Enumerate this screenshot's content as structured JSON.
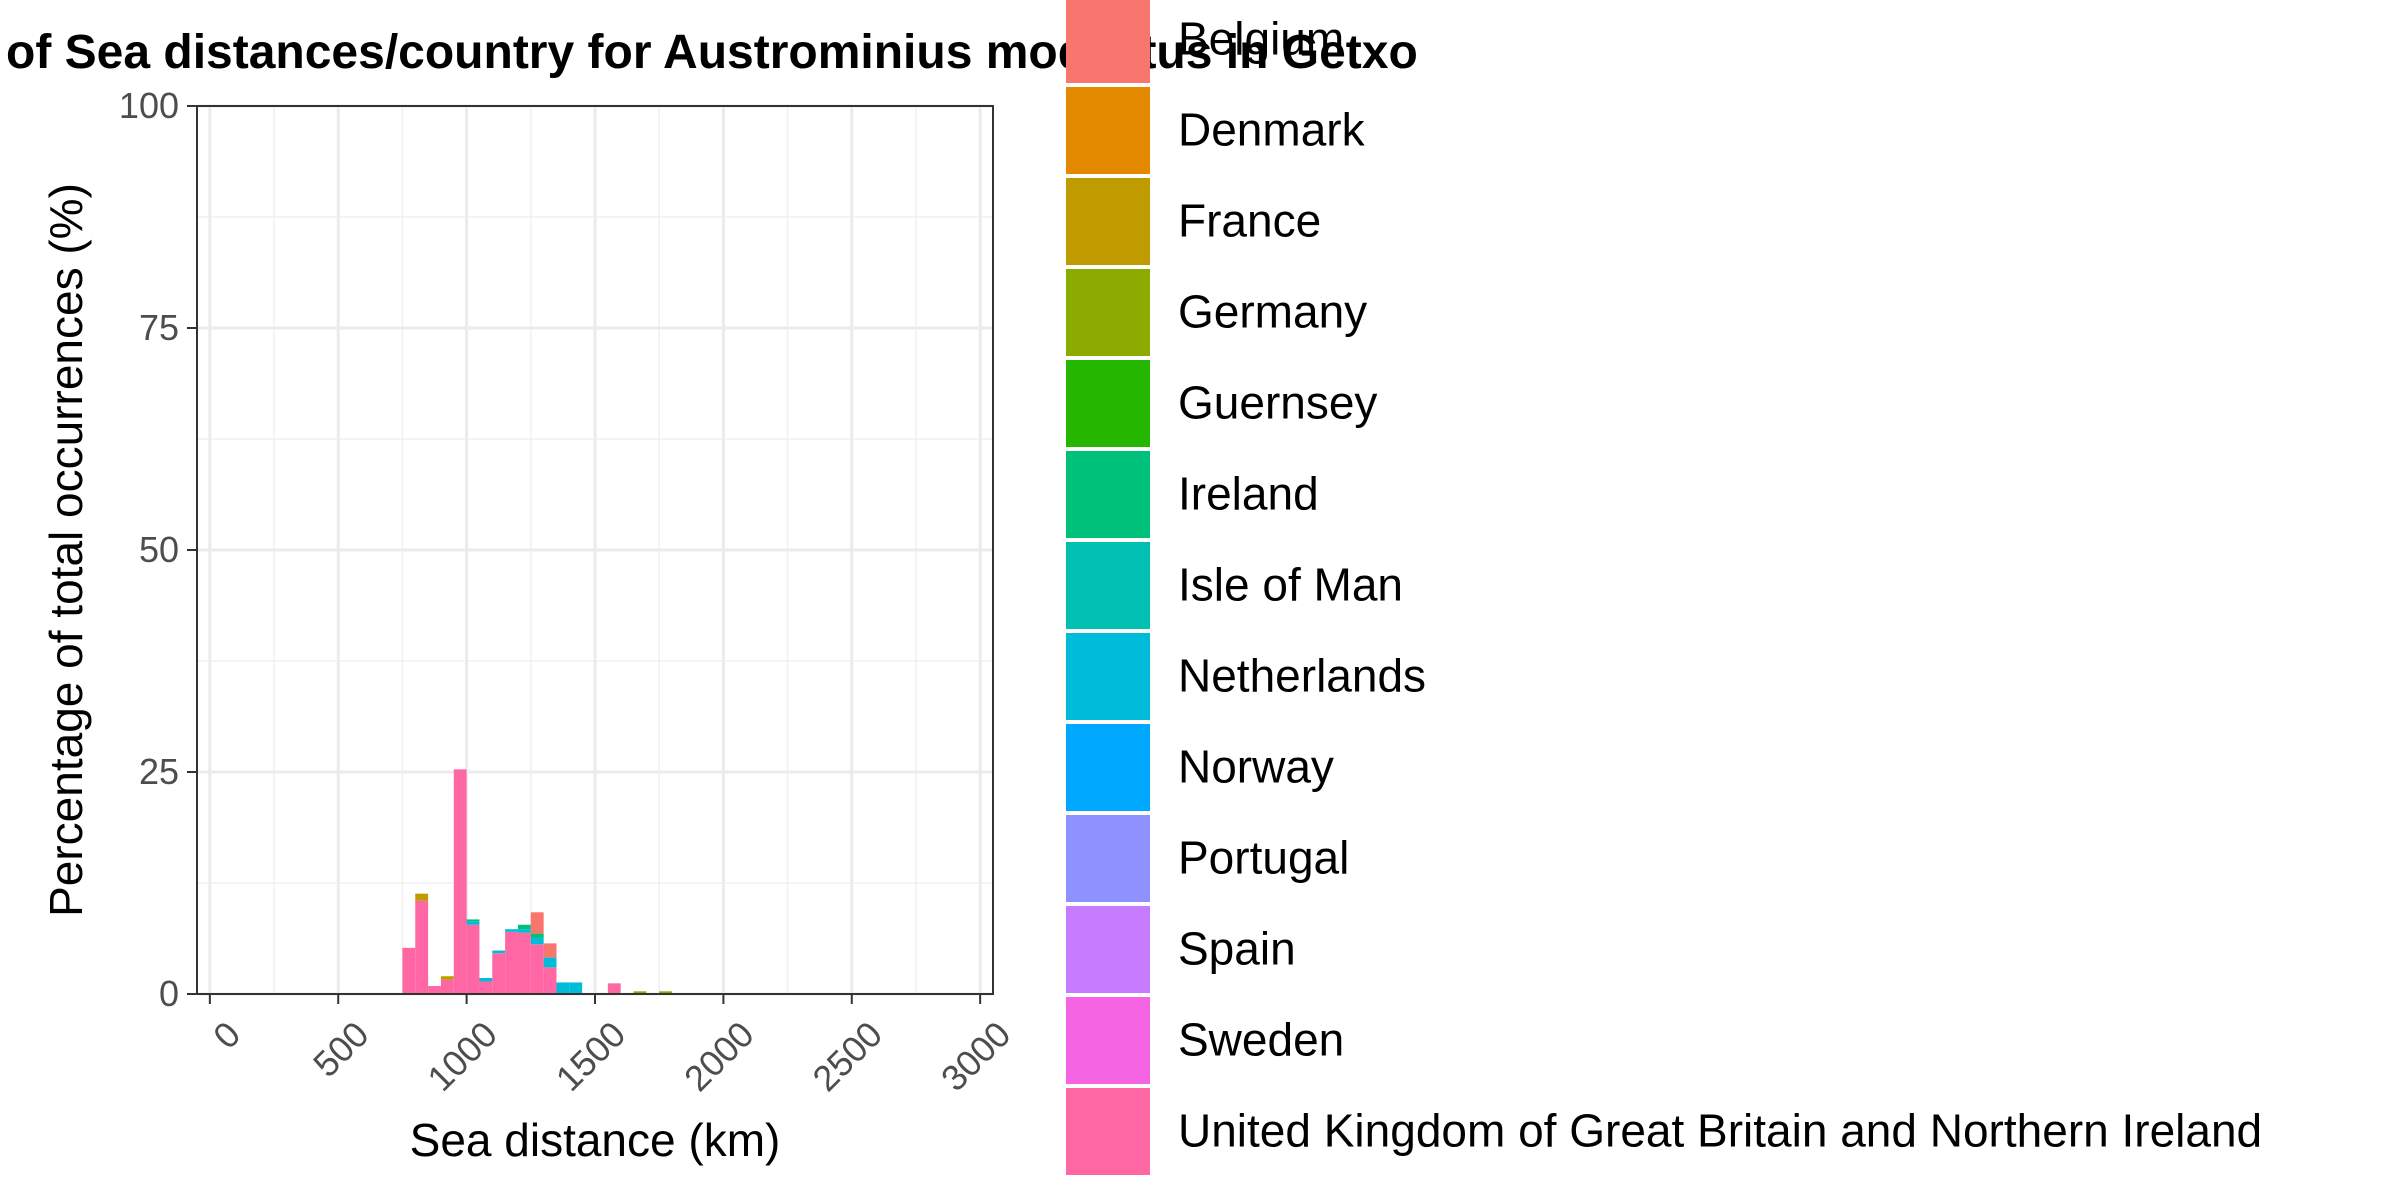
{
  "chart_data": {
    "type": "bar",
    "stacked": true,
    "title": "of Sea distances/country for Austrominius modestus in Getxo",
    "xlabel": "Sea distance (km)",
    "ylabel": "Percentage of total occurrences (%)",
    "xlim": [
      -50,
      3050
    ],
    "ylim": [
      0,
      100
    ],
    "xticks": [
      "0",
      "500",
      "1000",
      "1500",
      "2000",
      "2500",
      "3000"
    ],
    "yticks": [
      "0",
      "25",
      "50",
      "75",
      "100"
    ],
    "grid": true,
    "legend_position": "right",
    "bin_width": 50,
    "bins": [
      750,
      800,
      850,
      900,
      950,
      1000,
      1050,
      1100,
      1150,
      1200,
      1250,
      1300,
      1350,
      1400,
      1550,
      1650,
      1750
    ],
    "series": [
      {
        "name": "United Kingdom of Great Britain and Northern Ireland",
        "color": "#FF67A4",
        "values": [
          5.2,
          10.5,
          0.9,
          1.6,
          25.3,
          7.8,
          1.4,
          4.6,
          7.0,
          6.9,
          5.6,
          3.0,
          0.0,
          0.0,
          1.2,
          0.0,
          0.0
        ]
      },
      {
        "name": "Sweden",
        "color": "#F564E3",
        "values": [
          0,
          0,
          0,
          0,
          0,
          0,
          0,
          0,
          0,
          0,
          0,
          0,
          0,
          0,
          0,
          0,
          0
        ]
      },
      {
        "name": "Spain",
        "color": "#C77CFF",
        "values": [
          0,
          0,
          0,
          0,
          0,
          0,
          0,
          0,
          0,
          0,
          0,
          0,
          0,
          0,
          0,
          0,
          0
        ]
      },
      {
        "name": "Portugal",
        "color": "#8F91FF",
        "values": [
          0,
          0,
          0,
          0,
          0,
          0,
          0,
          0,
          0,
          0,
          0,
          0,
          0,
          0,
          0,
          0,
          0
        ]
      },
      {
        "name": "Norway",
        "color": "#00A9FF",
        "values": [
          0,
          0,
          0,
          0,
          0,
          0,
          0,
          0,
          0,
          0,
          0,
          0,
          0,
          0,
          0,
          0,
          0
        ]
      },
      {
        "name": "Netherlands",
        "color": "#00BCD8",
        "values": [
          0,
          0,
          0,
          0,
          0,
          0.4,
          0.4,
          0.3,
          0.3,
          0.4,
          0.7,
          1.1,
          1.3,
          1.3,
          0,
          0,
          0
        ]
      },
      {
        "name": "Isle of Man",
        "color": "#00C0B2",
        "values": [
          0,
          0,
          0,
          0,
          0,
          0,
          0,
          0,
          0,
          0,
          0,
          0,
          0,
          0,
          0,
          0,
          0
        ]
      },
      {
        "name": "Ireland",
        "color": "#00C17A",
        "values": [
          0,
          0,
          0,
          0,
          0,
          0.2,
          0,
          0,
          0,
          0.5,
          0.5,
          0,
          0,
          0,
          0,
          0,
          0
        ]
      },
      {
        "name": "Guernsey",
        "color": "#25B600",
        "values": [
          0,
          0,
          0,
          0,
          0,
          0,
          0,
          0,
          0,
          0,
          0,
          0,
          0,
          0,
          0,
          0,
          0
        ]
      },
      {
        "name": "Germany",
        "color": "#8CAB00",
        "values": [
          0,
          0,
          0,
          0,
          0,
          0,
          0,
          0,
          0,
          0,
          0,
          0,
          0,
          0,
          0,
          0.3,
          0.3
        ]
      },
      {
        "name": "France",
        "color": "#C09B00",
        "values": [
          0,
          0.8,
          0,
          0.4,
          0,
          0,
          0,
          0,
          0,
          0,
          0,
          0,
          0,
          0,
          0,
          0,
          0
        ]
      },
      {
        "name": "Denmark",
        "color": "#E38900",
        "values": [
          0,
          0,
          0,
          0,
          0,
          0,
          0,
          0,
          0,
          0,
          0,
          0,
          0,
          0,
          0,
          0,
          0
        ]
      },
      {
        "name": "Belgium",
        "color": "#F8766D",
        "values": [
          0,
          0,
          0,
          0,
          0,
          0,
          0,
          0,
          0,
          0,
          2.4,
          1.6,
          0,
          0,
          0,
          0,
          0
        ]
      }
    ],
    "legend": [
      {
        "name": "Belgium",
        "color": "#F8766D"
      },
      {
        "name": "Denmark",
        "color": "#E38900"
      },
      {
        "name": "France",
        "color": "#C09B00"
      },
      {
        "name": "Germany",
        "color": "#8CAB00"
      },
      {
        "name": "Guernsey",
        "color": "#25B600"
      },
      {
        "name": "Ireland",
        "color": "#00C17A"
      },
      {
        "name": "Isle of Man",
        "color": "#00C0B2"
      },
      {
        "name": "Netherlands",
        "color": "#00BCD8"
      },
      {
        "name": "Norway",
        "color": "#00A9FF"
      },
      {
        "name": "Portugal",
        "color": "#8F91FF"
      },
      {
        "name": "Spain",
        "color": "#C77CFF"
      },
      {
        "name": "Sweden",
        "color": "#F564E3"
      },
      {
        "name": "United Kingdom of Great Britain and Northern Ireland",
        "color": "#FF67A4"
      }
    ]
  }
}
